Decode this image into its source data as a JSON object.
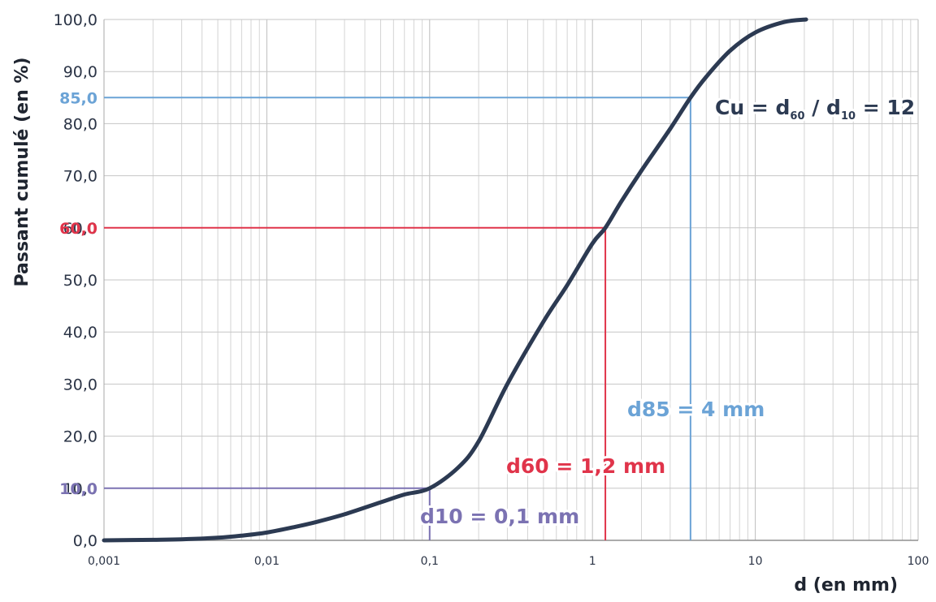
{
  "chart_data": {
    "type": "line",
    "x_scale": "log",
    "xlim": [
      0.001,
      100
    ],
    "ylim": [
      0,
      100
    ],
    "grid": true,
    "xlabel": "d (en mm)",
    "ylabel": "Passant cumulé (en %)",
    "x_tick_labels": [
      "0,001",
      "0,01",
      "0,1",
      "1",
      "10",
      "100"
    ],
    "y_tick_labels": [
      "0,0",
      "10,0",
      "20,0",
      "30,0",
      "40,0",
      "50,0",
      "60,0",
      "70,0",
      "80,0",
      "90,0",
      "100,0"
    ],
    "series": [
      {
        "color": "#2c3a52",
        "x": [
          0.001,
          0.002,
          0.003,
          0.005,
          0.007,
          0.01,
          0.015,
          0.02,
          0.03,
          0.05,
          0.07,
          0.1,
          0.15,
          0.2,
          0.3,
          0.5,
          0.7,
          1.0,
          1.2,
          1.5,
          2.0,
          3.0,
          4.0,
          5.0,
          7.0,
          10.0,
          15.0,
          20.5
        ],
        "y": [
          0.0,
          0.1,
          0.2,
          0.5,
          0.9,
          1.5,
          2.6,
          3.5,
          5.0,
          7.3,
          8.8,
          10.0,
          14.0,
          19.0,
          30.0,
          42.0,
          49.0,
          57.0,
          60.0,
          65.0,
          71.0,
          79.0,
          85.0,
          89.0,
          94.0,
          97.5,
          99.5,
          100.0
        ]
      }
    ],
    "reference_lines": [
      {
        "y": 10,
        "x": 0.1,
        "color": "#7b72b2"
      },
      {
        "y": 60,
        "x": 1.2,
        "color": "#e0344a"
      },
      {
        "y": 85,
        "x": 4,
        "color": "#6ba3d6"
      }
    ],
    "highlighted_y_labels": [
      {
        "text": "10,0",
        "value": 10,
        "color": "#7b72b2"
      },
      {
        "text": "60,0",
        "value": 60,
        "color": "#e0344a"
      },
      {
        "text": "85,0",
        "value": 85,
        "color": "#6ba3d6"
      }
    ],
    "annotations": {
      "d10": {
        "text": "d10 = 0,1 mm",
        "color": "#7b72b2"
      },
      "d60": {
        "text": "d60 = 1,2 mm",
        "color": "#e0344a"
      },
      "d85": {
        "text": "d85 = 4 mm",
        "color": "#6ba3d6"
      },
      "cu": {
        "prefix": "Cu = d",
        "sub1": "60",
        "mid": " / d",
        "sub2": "10",
        "suffix": " = 12",
        "color": "#2c3a52"
      }
    }
  }
}
